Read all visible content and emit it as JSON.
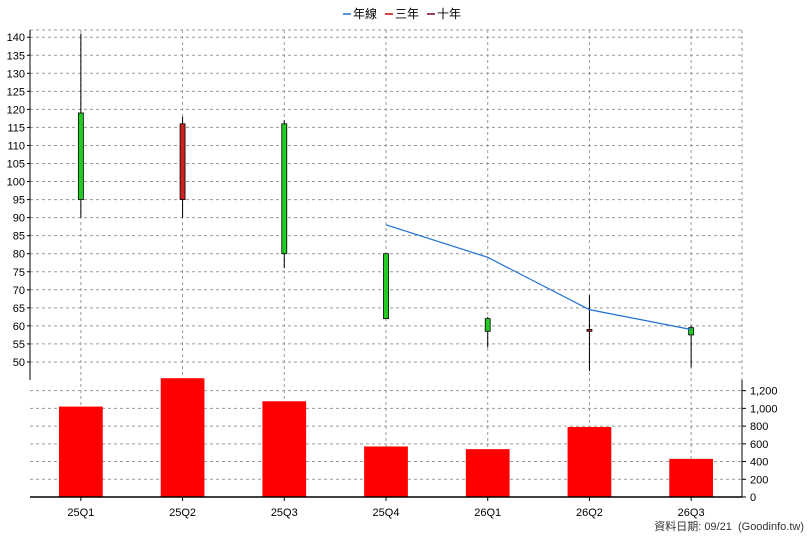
{
  "chart_data": [
    {
      "type": "candlestick",
      "categories": [
        "25Q1",
        "25Q2",
        "25Q3",
        "25Q4",
        "26Q1",
        "26Q2",
        "26Q3"
      ],
      "ylim": [
        45,
        142
      ],
      "yticks": [
        50,
        55,
        60,
        65,
        70,
        75,
        80,
        85,
        90,
        95,
        100,
        105,
        110,
        115,
        120,
        125,
        130,
        135,
        140
      ],
      "grid": true,
      "legend_position": "top-center",
      "legend": [
        {
          "label": "年線",
          "color": "#1f6fd1"
        },
        {
          "label": "三年",
          "color": "#cc0000"
        },
        {
          "label": "十年",
          "color": "#800020"
        }
      ],
      "candles": [
        {
          "x": "25Q1",
          "open": 95,
          "close": 119,
          "high": 141,
          "low": 90,
          "color": "#22cc22"
        },
        {
          "x": "25Q2",
          "open": 116,
          "close": 95,
          "high": 118,
          "low": 90,
          "color": "#cc2222"
        },
        {
          "x": "25Q3",
          "open": 80,
          "close": 116,
          "high": 117,
          "low": 76,
          "color": "#22cc22"
        },
        {
          "x": "25Q4",
          "open": 62,
          "close": 80,
          "high": 80,
          "low": 62,
          "color": "#22cc22"
        },
        {
          "x": "26Q1",
          "open": 58.5,
          "close": 62,
          "high": 62.5,
          "low": 54,
          "color": "#22cc22"
        },
        {
          "x": "26Q2",
          "open": 59,
          "close": 58.5,
          "high": 68.5,
          "low": 47.5,
          "color": "#cc2222"
        },
        {
          "x": "26Q3",
          "open": 57.5,
          "close": 59.5,
          "high": 60,
          "low": 48.5,
          "color": "#22cc22"
        }
      ],
      "series": [
        {
          "name": "年線",
          "x": [
            "25Q4",
            "26Q1",
            "26Q2",
            "26Q3"
          ],
          "values": [
            88,
            79,
            64.5,
            59
          ],
          "color": "#1f6fd1"
        }
      ]
    },
    {
      "type": "bar",
      "categories": [
        "25Q1",
        "25Q2",
        "25Q3",
        "25Q4",
        "26Q1",
        "26Q2",
        "26Q3"
      ],
      "values": [
        1020,
        1340,
        1080,
        570,
        540,
        790,
        430
      ],
      "ylim": [
        0,
        1320
      ],
      "yticks": [
        0,
        200,
        400,
        600,
        800,
        1000,
        1200
      ],
      "ytick_labels": [
        "0",
        "200",
        "400",
        "600",
        "800",
        "1,000",
        "1,200"
      ],
      "color": "#ff0000",
      "grid": true
    }
  ],
  "footer": {
    "label": "資料日期: 09/21",
    "source": "(Goodinfo.tw)"
  }
}
